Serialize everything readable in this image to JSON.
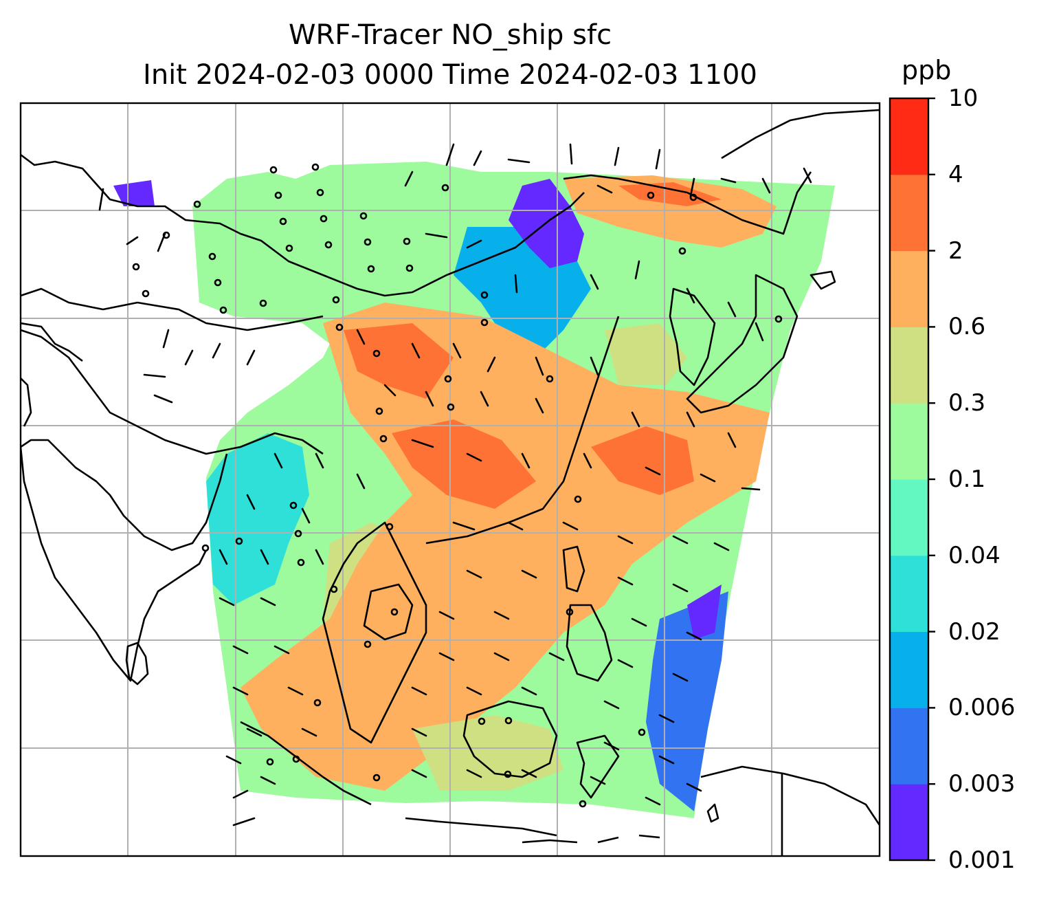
{
  "title": {
    "line1": "WRF-Tracer NO_ship sfc",
    "line2": "Init 2024-02-03 0000 Time 2024-02-03 1100"
  },
  "colorbar": {
    "unit": "ppb",
    "levels": [
      "0.001",
      "0.003",
      "0.006",
      "0.02",
      "0.04",
      "0.1",
      "0.3",
      "0.6",
      "2",
      "4",
      "10"
    ],
    "colors": [
      "#6429ff",
      "#3273f2",
      "#07b0ea",
      "#2ee0d8",
      "#63f7c2",
      "#9dfb9d",
      "#cfe082",
      "#ffb05f",
      "#ff7236",
      "#ff2b15"
    ]
  },
  "map": {
    "gridlines": true,
    "coastline_color": "#000000",
    "grid_color": "#b0b0b0",
    "missing_color": "#ffffff"
  }
}
